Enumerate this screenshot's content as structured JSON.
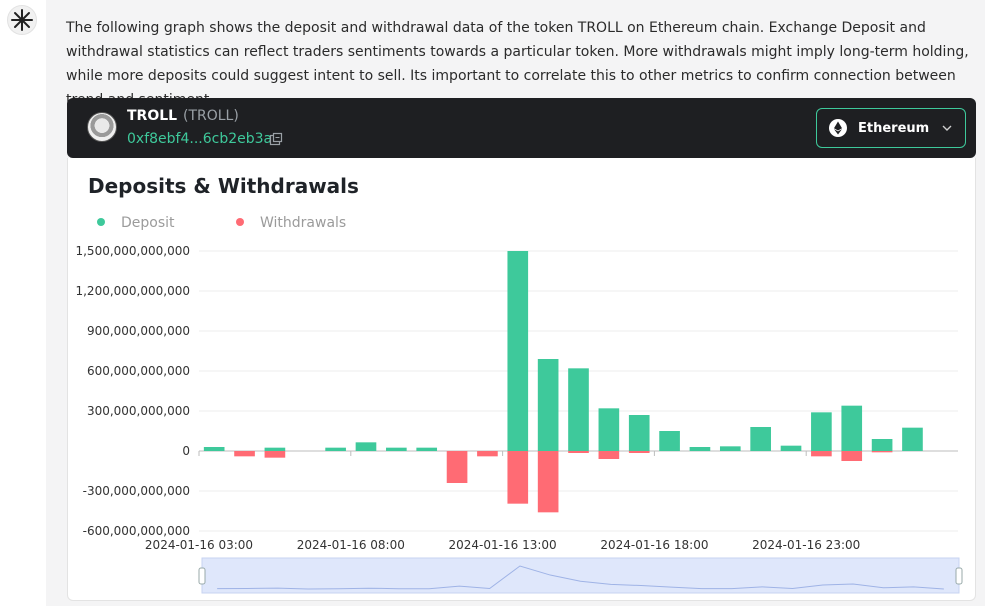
{
  "message": {
    "text": "The following graph shows the deposit and withdrawal data of the token TROLL on Ethereum chain. Exchange Deposit and withdrawal statistics can reflect traders sentiments towards a particular token. More withdrawals might imply long-term holding, while more deposits could suggest intent to sell. Its important to correlate this to other metrics to confirm connection between trend and sentiment."
  },
  "token": {
    "name": "TROLL",
    "symbol": "(TROLL)",
    "address": "0xf8ebf4...6cb2eb3a",
    "chain": "Ethereum"
  },
  "colors": {
    "deposit": "#3ec99b",
    "withdrawal": "#ff6b74",
    "accent": "#3ec99b"
  },
  "icons": [
    "bot-avatar-icon",
    "token-logo-icon",
    "copy-icon",
    "ethereum-icon",
    "chevron-down-icon"
  ],
  "chart_data": {
    "type": "bar",
    "title": "Deposits & Withdrawals",
    "legend": [
      "Deposit",
      "Withdrawals"
    ],
    "legend_position": "top-left",
    "grid": true,
    "ylim": [
      -600000000000,
      1500000000000
    ],
    "yticks": [
      "1,500,000,000,000",
      "1,200,000,000,000",
      "900,000,000,000",
      "600,000,000,000",
      "300,000,000,000",
      "0",
      "-300,000,000,000",
      "-600,000,000,000"
    ],
    "ytick_values": [
      1500000000000,
      1200000000000,
      900000000000,
      600000000000,
      300000000000,
      0,
      -300000000000,
      -600000000000
    ],
    "xtick_labels": [
      "2024-01-16 03:00",
      "2024-01-16 08:00",
      "2024-01-16 13:00",
      "2024-01-16 18:00",
      "2024-01-16 23:00"
    ],
    "xtick_indices": [
      0,
      5,
      10,
      15,
      20
    ],
    "categories": [
      "2024-01-16 03:00",
      "2024-01-16 04:00",
      "2024-01-16 05:00",
      "2024-01-16 06:00",
      "2024-01-16 07:00",
      "2024-01-16 08:00",
      "2024-01-16 09:00",
      "2024-01-16 10:00",
      "2024-01-16 11:00",
      "2024-01-16 12:00",
      "2024-01-16 13:00",
      "2024-01-16 14:00",
      "2024-01-16 15:00",
      "2024-01-16 16:00",
      "2024-01-16 17:00",
      "2024-01-16 18:00",
      "2024-01-16 19:00",
      "2024-01-16 20:00",
      "2024-01-16 21:00",
      "2024-01-16 22:00",
      "2024-01-16 23:00",
      "2024-01-17 00:00",
      "2024-01-17 01:00",
      "2024-01-17 02:00",
      "2024-01-17 03:00"
    ],
    "series": [
      {
        "name": "Deposit",
        "values": [
          30000000000,
          0,
          25000000000,
          0,
          25000000000,
          65000000000,
          25000000000,
          25000000000,
          0,
          0,
          1500000000000,
          690000000000,
          620000000000,
          320000000000,
          270000000000,
          150000000000,
          30000000000,
          35000000000,
          180000000000,
          40000000000,
          290000000000,
          340000000000,
          90000000000,
          175000000000,
          0
        ]
      },
      {
        "name": "Withdrawals",
        "values": [
          0,
          -40000000000,
          -50000000000,
          0,
          0,
          0,
          0,
          0,
          -240000000000,
          -40000000000,
          -395000000000,
          -460000000000,
          -15000000000,
          -60000000000,
          -15000000000,
          0,
          0,
          0,
          0,
          0,
          -40000000000,
          -75000000000,
          -10000000000,
          0,
          0
        ]
      }
    ]
  }
}
